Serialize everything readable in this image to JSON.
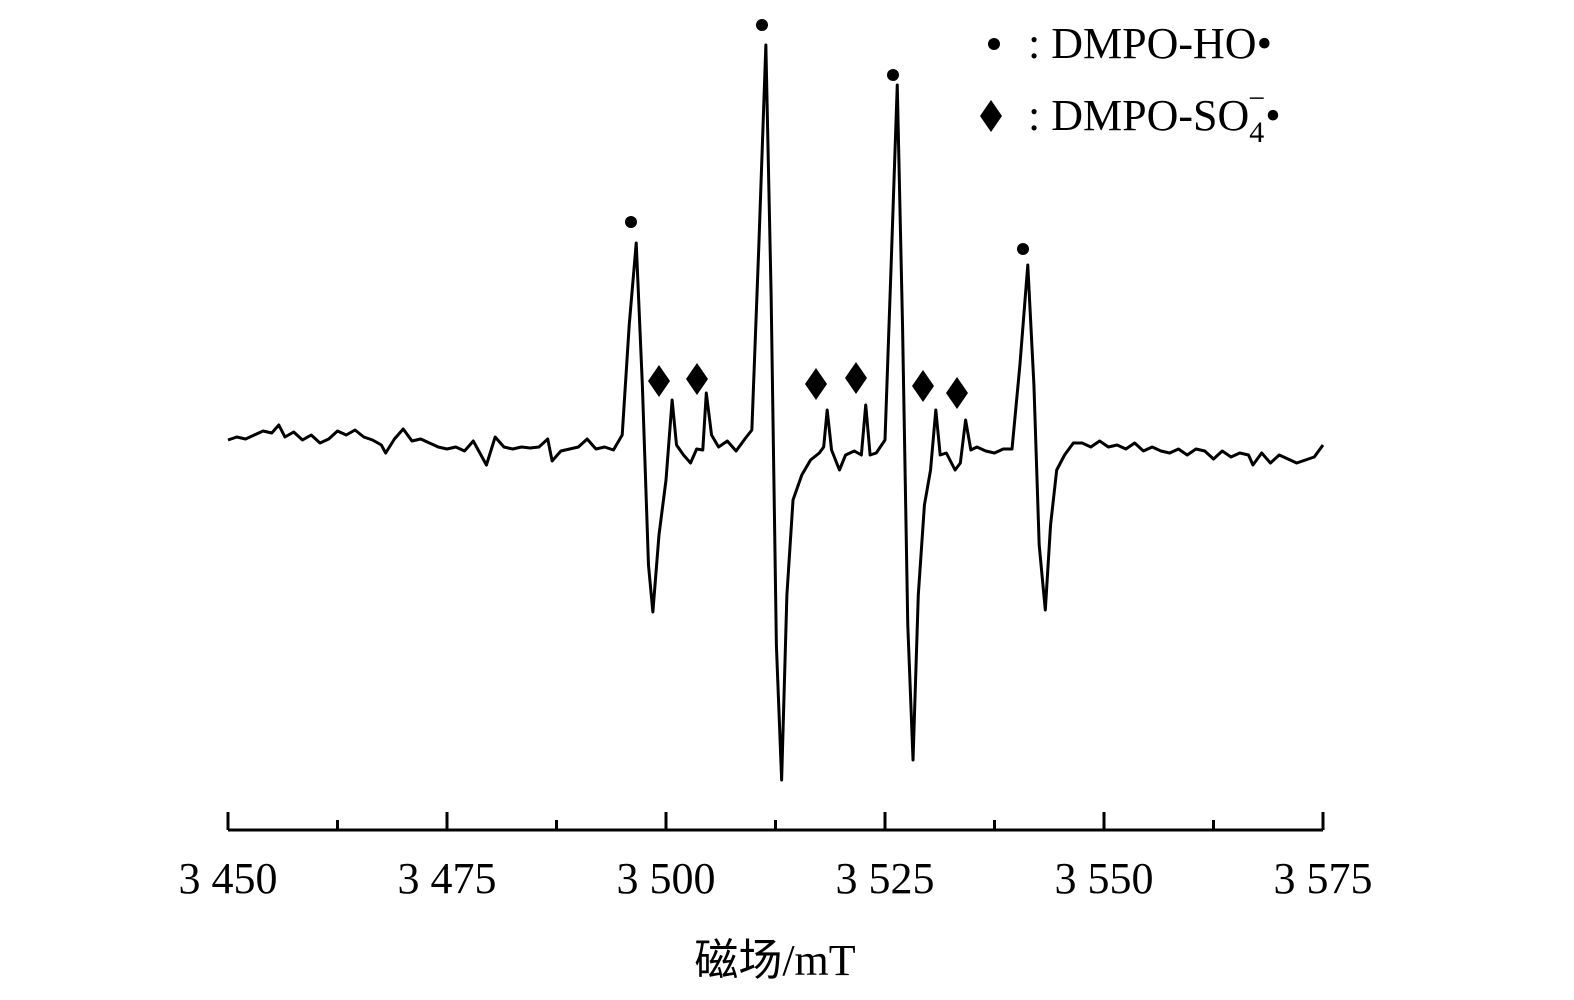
{
  "chart_data": {
    "type": "line",
    "xlabel": "磁场/mT",
    "color": "#000000",
    "legend": {
      "ho": ": DMPO-HO•",
      "so4": [
        ": DMPO-SO",
        "4",
        "−",
        "•"
      ]
    },
    "xlim": [
      3450,
      3575
    ],
    "xticks": [
      {
        "value": 3450,
        "label": "3 450"
      },
      {
        "value": 3475,
        "label": "3 475"
      },
      {
        "value": 3500,
        "label": "3 500"
      },
      {
        "value": 3525,
        "label": "3 525"
      },
      {
        "value": 3550,
        "label": "3 550"
      },
      {
        "value": 3575,
        "label": "3 575"
      }
    ],
    "xminorticks": [
      3462.5,
      3487.5,
      3512.5,
      3537.5,
      3562.5
    ],
    "ylim": [
      -385,
      445
    ],
    "x": [
      3450,
      3451,
      3452,
      3453,
      3454,
      3455,
      3455.8,
      3456.5,
      3457.5,
      3458.5,
      3459.5,
      3460.5,
      3461.5,
      3462.5,
      3463.5,
      3464.5,
      3465.5,
      3466.5,
      3467.5,
      3468,
      3469,
      3470,
      3471,
      3472,
      3473,
      3474,
      3475,
      3476,
      3477,
      3478,
      3479,
      3479.5,
      3480.5,
      3481.5,
      3482.5,
      3483.5,
      3484.5,
      3485.5,
      3486.5,
      3487,
      3488,
      3489,
      3490,
      3491,
      3492,
      3493,
      3494,
      3495,
      3495.8,
      3496.6,
      3497.3,
      3498,
      3498.5,
      3499.2,
      3500,
      3500.7,
      3501.2,
      3502,
      3502.8,
      3503.5,
      3504.2,
      3504.6,
      3505.2,
      3506,
      3507,
      3508,
      3509,
      3509.8,
      3510.6,
      3511.4,
      3512,
      3512.6,
      3513.2,
      3513.8,
      3514.5,
      3515.5,
      3516.5,
      3517.5,
      3518,
      3518.4,
      3518.9,
      3519.8,
      3520.5,
      3521.5,
      3522.3,
      3522.8,
      3523.3,
      3524,
      3525,
      3525.7,
      3526.4,
      3527,
      3527.6,
      3528.2,
      3528.8,
      3529.5,
      3530.2,
      3530.8,
      3531.3,
      3532,
      3533,
      3533.6,
      3534.2,
      3534.8,
      3535.5,
      3536.5,
      3537.5,
      3538.5,
      3539.5,
      3540.4,
      3541.3,
      3542,
      3542.6,
      3543.3,
      3543.9,
      3544.6,
      3545.5,
      3546.5,
      3547.5,
      3548.5,
      3549.5,
      3550.5,
      3551.5,
      3552.5,
      3553.5,
      3554.5,
      3555.5,
      3556.5,
      3557.5,
      3558.5,
      3559.5,
      3560.5,
      3561.5,
      3562.5,
      3563.5,
      3564.5,
      3565.5,
      3566.5,
      3567,
      3568,
      3569,
      3570,
      3571,
      3572,
      3573,
      3574,
      3575
    ],
    "values": [
      5,
      8,
      6,
      10,
      14,
      12,
      20,
      8,
      13,
      5,
      10,
      2,
      6,
      14,
      10,
      15,
      8,
      5,
      0,
      -8,
      6,
      16,
      4,
      6,
      2,
      -2,
      -4,
      -2,
      -6,
      4,
      -12,
      -20,
      8,
      -2,
      -4,
      -2,
      -3,
      -2,
      6,
      -16,
      -6,
      -4,
      -2,
      6,
      -4,
      -2,
      -5,
      10,
      120,
      202,
      60,
      -120,
      -167,
      -90,
      -35,
      45,
      0,
      -10,
      -18,
      -4,
      -5,
      52,
      10,
      -2,
      4,
      -6,
      6,
      15,
      200,
      400,
      150,
      -200,
      -335,
      -150,
      -55,
      -30,
      -15,
      -8,
      -2,
      35,
      -5,
      -25,
      -10,
      -6,
      -10,
      40,
      -10,
      -8,
      5,
      180,
      360,
      120,
      -180,
      -315,
      -150,
      -60,
      -25,
      35,
      -10,
      -8,
      -25,
      -18,
      25,
      -5,
      -2,
      -6,
      -8,
      -4,
      -4,
      80,
      180,
      60,
      -100,
      -165,
      -80,
      -25,
      -10,
      2,
      2,
      -2,
      4,
      -2,
      0,
      -4,
      2,
      -6,
      -2,
      -6,
      -8,
      -4,
      -10,
      -4,
      -6,
      -14,
      -6,
      -12,
      -8,
      -10,
      -20,
      -8,
      -18,
      -10,
      -14,
      -18,
      -15,
      -12,
      0
    ]
  }
}
